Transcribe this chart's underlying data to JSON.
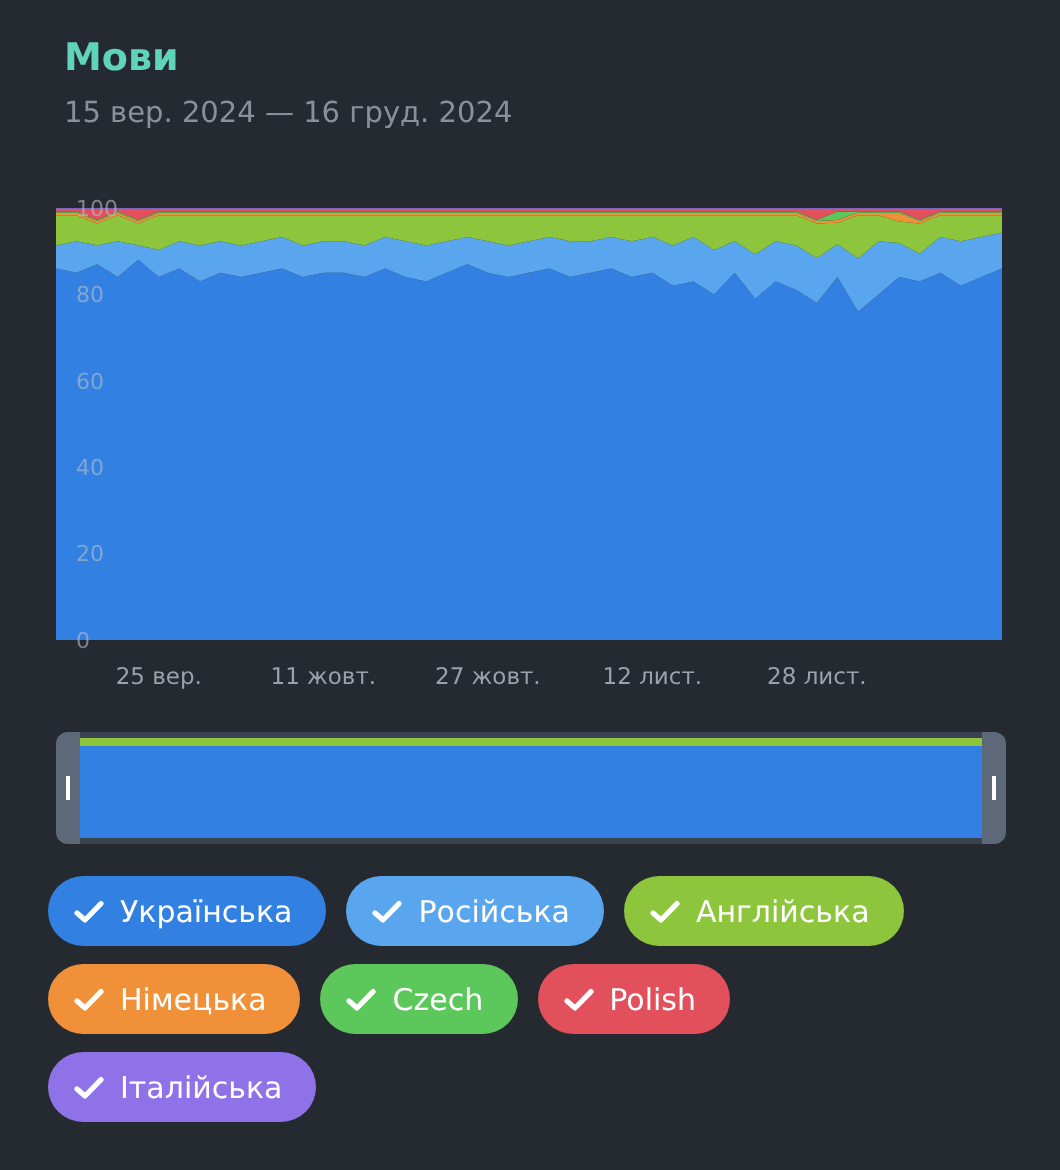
{
  "chart_data": {
    "type": "area",
    "stacked": true,
    "title": "Мови",
    "subtitle": "15 вер. 2024 — 16 груд. 2024",
    "x": [
      "2024-09-15",
      "2024-09-17",
      "2024-09-19",
      "2024-09-21",
      "2024-09-23",
      "2024-09-25",
      "2024-09-27",
      "2024-09-29",
      "2024-10-01",
      "2024-10-03",
      "2024-10-05",
      "2024-10-07",
      "2024-10-09",
      "2024-10-11",
      "2024-10-13",
      "2024-10-15",
      "2024-10-17",
      "2024-10-19",
      "2024-10-21",
      "2024-10-23",
      "2024-10-25",
      "2024-10-27",
      "2024-10-29",
      "2024-10-31",
      "2024-11-02",
      "2024-11-04",
      "2024-11-06",
      "2024-11-08",
      "2024-11-10",
      "2024-11-12",
      "2024-11-14",
      "2024-11-16",
      "2024-11-18",
      "2024-11-20",
      "2024-11-22",
      "2024-11-24",
      "2024-11-26",
      "2024-11-28",
      "2024-11-30",
      "2024-12-02",
      "2024-12-04",
      "2024-12-06",
      "2024-12-08",
      "2024-12-10",
      "2024-12-12",
      "2024-12-14",
      "2024-12-16"
    ],
    "xlim": [
      "2024-09-15",
      "2024-12-16"
    ],
    "xticks": [
      {
        "value": "2024-09-25",
        "label": "25 вер."
      },
      {
        "value": "2024-10-11",
        "label": "11 жовт."
      },
      {
        "value": "2024-10-27",
        "label": "27 жовт."
      },
      {
        "value": "2024-11-12",
        "label": "12 лист."
      },
      {
        "value": "2024-11-28",
        "label": "28 лист."
      }
    ],
    "ylim": [
      0,
      100
    ],
    "yticks": [
      0,
      20,
      40,
      60,
      80,
      100
    ],
    "legend": "bottom",
    "series": [
      {
        "name": "Українська",
        "color": "#3180e2",
        "values": [
          86,
          85,
          87,
          84,
          88,
          84,
          86,
          83,
          85,
          84,
          85,
          86,
          84,
          85,
          85,
          84,
          86,
          84,
          83,
          85,
          87,
          85,
          84,
          85,
          86,
          84,
          85,
          86,
          84,
          85,
          82,
          83,
          80,
          85,
          79,
          83,
          81,
          78,
          84,
          76,
          80,
          84,
          83,
          85,
          82,
          84,
          86
        ]
      },
      {
        "name": "Російська",
        "color": "#5aa6ee",
        "values": [
          5.3,
          7.3,
          4.4,
          8.3,
          3.4,
          6.3,
          6.3,
          8.3,
          7.3,
          7.3,
          7.3,
          7.3,
          7.3,
          7.3,
          7.3,
          7.3,
          7.3,
          8.3,
          8.3,
          7.3,
          6.3,
          7.3,
          7.3,
          7.3,
          7.3,
          8.3,
          7.3,
          7.3,
          8.3,
          8.3,
          9.3,
          10.3,
          10.3,
          7.3,
          10.3,
          9.3,
          10.3,
          10.4,
          7.6,
          12.3,
          12.3,
          7.9,
          6.4,
          8.3,
          10.3,
          9.3,
          8.3
        ]
      },
      {
        "name": "Англійська",
        "color": "#8dc63c",
        "values": [
          7,
          6,
          5,
          6,
          5,
          8,
          6,
          7,
          6,
          7,
          6,
          5,
          7,
          6,
          6,
          7,
          5,
          6,
          7,
          6,
          5,
          6,
          7,
          6,
          5,
          6,
          6,
          5,
          6,
          5,
          7,
          5,
          8,
          6,
          9,
          6,
          7,
          8,
          5,
          10,
          6,
          5,
          7,
          5,
          6,
          5,
          4
        ]
      },
      {
        "name": "Німецька",
        "color": "#f0913a",
        "values": [
          0.6,
          0.6,
          0.6,
          0.6,
          0.6,
          0.6,
          0.6,
          0.6,
          0.6,
          0.6,
          0.6,
          0.6,
          0.6,
          0.6,
          0.6,
          0.6,
          0.6,
          0.6,
          0.6,
          0.6,
          0.6,
          0.6,
          0.6,
          0.6,
          0.6,
          0.6,
          0.6,
          0.6,
          0.6,
          0.6,
          0.6,
          0.6,
          0.6,
          0.6,
          0.6,
          0.6,
          0.6,
          0.6,
          0.6,
          0.6,
          0.6,
          2.0,
          0.6,
          0.6,
          0.6,
          0.6,
          0.6
        ]
      },
      {
        "name": "Czech",
        "color": "#5cc75a",
        "values": [
          0.3,
          0.3,
          0.3,
          0.3,
          0.3,
          0.3,
          0.3,
          0.3,
          0.3,
          0.3,
          0.3,
          0.3,
          0.3,
          0.3,
          0.3,
          0.3,
          0.3,
          0.3,
          0.3,
          0.3,
          0.3,
          0.3,
          0.3,
          0.3,
          0.3,
          0.3,
          0.3,
          0.3,
          0.3,
          0.3,
          0.3,
          0.3,
          0.3,
          0.3,
          0.3,
          0.3,
          0.3,
          0.3,
          2.0,
          0.3,
          0.3,
          0.3,
          0.3,
          0.3,
          0.3,
          0.3,
          0.3
        ]
      },
      {
        "name": "Polish",
        "color": "#e2505b",
        "values": [
          0.6,
          0.6,
          2.5,
          0.6,
          2.5,
          0.6,
          0.6,
          0.6,
          0.6,
          0.6,
          0.6,
          0.6,
          0.6,
          0.6,
          0.6,
          0.6,
          0.6,
          0.6,
          0.6,
          0.6,
          0.6,
          0.6,
          0.6,
          0.6,
          0.6,
          0.6,
          0.6,
          0.6,
          0.6,
          0.6,
          0.6,
          0.6,
          0.6,
          0.6,
          0.6,
          0.6,
          0.6,
          2.5,
          0.6,
          0.6,
          0.6,
          0.6,
          2.5,
          0.6,
          0.6,
          0.6,
          0.6
        ]
      },
      {
        "name": "Італійська",
        "color": "#8f72e8",
        "values": [
          0.2,
          0.2,
          0.2,
          0.2,
          0.2,
          0.2,
          0.2,
          0.2,
          0.2,
          0.2,
          0.2,
          0.2,
          0.2,
          0.2,
          0.2,
          0.2,
          0.2,
          0.2,
          0.2,
          0.2,
          0.2,
          0.2,
          0.2,
          0.2,
          0.2,
          0.2,
          0.2,
          0.2,
          0.2,
          0.2,
          0.2,
          0.2,
          0.2,
          0.2,
          0.2,
          0.2,
          0.2,
          0.2,
          0.2,
          0.2,
          0.2,
          0.2,
          0.2,
          0.2,
          0.2,
          0.2,
          0.2
        ]
      }
    ]
  }
}
